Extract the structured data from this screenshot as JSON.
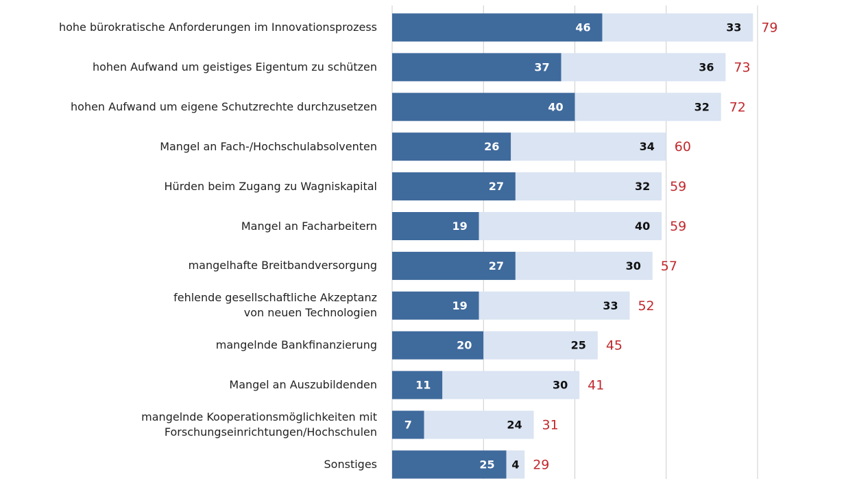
{
  "chart_data": {
    "type": "stacked-bar-horizontal",
    "categories": [
      "hohe bürokratische Anforderungen im Innovationsprozess",
      "hohen Aufwand um geistiges Eigentum zu schützen",
      "hohen Aufwand um eigene Schutzrechte durchzusetzen",
      "Mangel an Fach-/Hochschulabsolventen",
      "Hürden beim Zugang zu Wagniskapital",
      "Mangel an Facharbeitern",
      "mangelhafte Breitbandversorgung",
      "fehlende gesellschaftliche Akzeptanz\nvon neuen Technologien",
      "mangelnde Bankfinanzierung",
      "Mangel an Auszubildenden",
      "mangelnde Kooperationsmöglichkeiten mit\nForschungseinrichtungen/Hochschulen",
      "Sonstiges"
    ],
    "series": [
      {
        "color": "#3f6a9c",
        "values": [
          46,
          37,
          40,
          26,
          27,
          19,
          27,
          19,
          20,
          11,
          7,
          25
        ]
      },
      {
        "color": "#dae4f2",
        "values": [
          33,
          36,
          32,
          34,
          32,
          40,
          30,
          33,
          25,
          30,
          24,
          4
        ]
      }
    ],
    "totals": [
      79,
      73,
      72,
      60,
      59,
      59,
      57,
      52,
      45,
      41,
      31,
      29
    ],
    "totals_color": "#c0282d",
    "xlim": [
      0,
      80
    ],
    "xticks": [
      0,
      20,
      40,
      60,
      80
    ],
    "grid": true
  }
}
